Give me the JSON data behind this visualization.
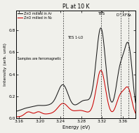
{
  "title": "PL at 10 K",
  "xlabel": "Energy (eV)",
  "ylabel": "Intensity (arb. unit)",
  "xmin": 3.155,
  "xmax": 3.385,
  "legend_lines": [
    "ZnO milled in Ar",
    "ZnO milled in N₂"
  ],
  "legend_note": "Samples are ferromagnetic",
  "line_colors": [
    "#1a1a1a",
    "#cc0000"
  ],
  "dashed_lines": [
    3.245,
    3.318,
    3.357,
    3.371
  ],
  "xticks": [
    3.16,
    3.2,
    3.24,
    3.28,
    3.32,
    3.36
  ],
  "background_color": "#f0f0eb"
}
